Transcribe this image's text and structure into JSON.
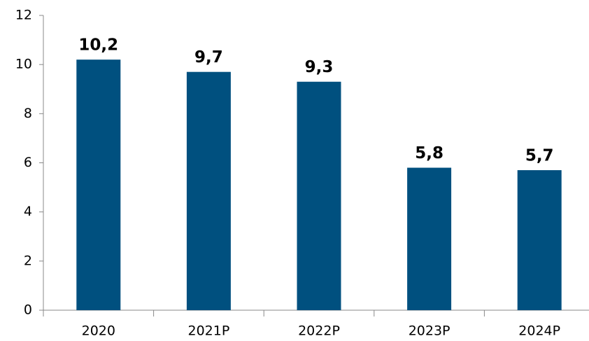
{
  "chart_data": {
    "type": "bar",
    "categories": [
      "2020",
      "2021P",
      "2022P",
      "2023P",
      "2024P"
    ],
    "values": [
      10.2,
      9.7,
      9.3,
      5.8,
      5.7
    ],
    "value_labels": [
      "10,2",
      "9,7",
      "9,3",
      "5,8",
      "5,7"
    ],
    "color": "#00507f",
    "ylim": [
      0,
      12
    ],
    "yticks": [
      0,
      2,
      4,
      6,
      8,
      10,
      12
    ],
    "grid": false
  }
}
